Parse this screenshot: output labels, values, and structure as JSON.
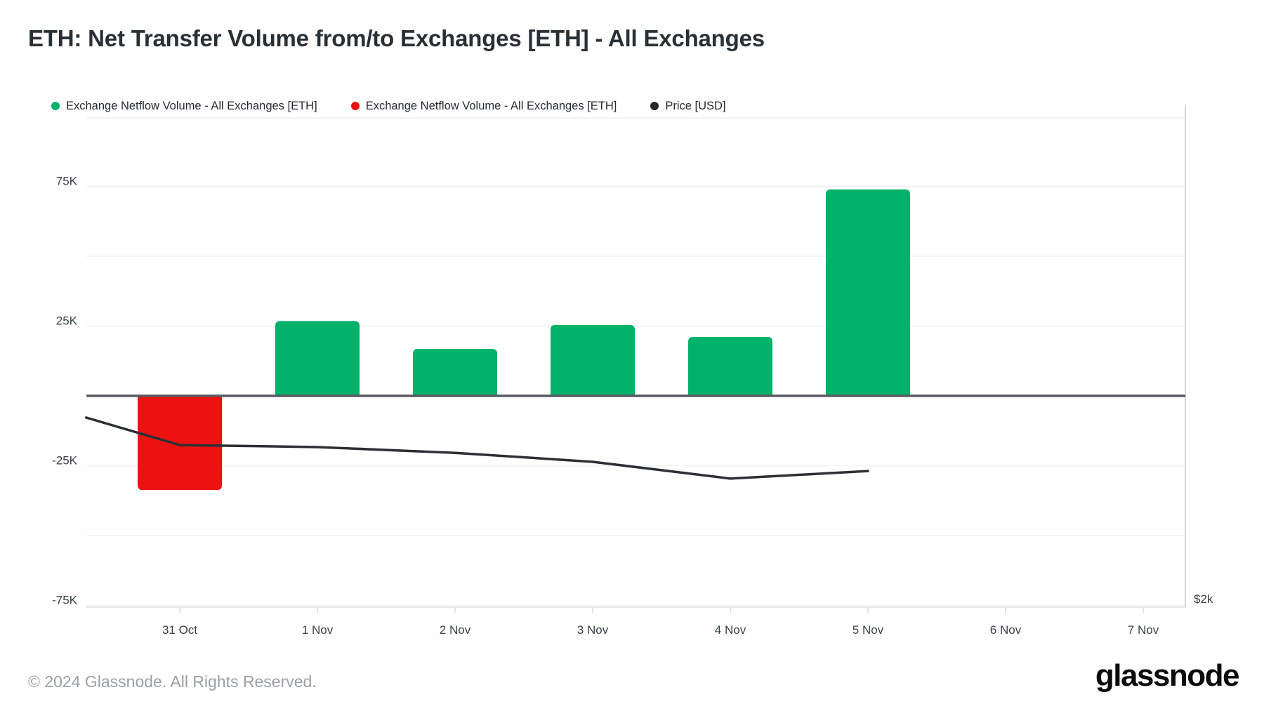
{
  "header": {
    "title": "ETH: Net Transfer Volume from/to Exchanges [ETH] - All Exchanges"
  },
  "legend": {
    "items": [
      {
        "label": "Exchange Netflow Volume - All Exchanges [ETH]",
        "color": "#00b26a"
      },
      {
        "label": "Exchange Netflow Volume - All Exchanges [ETH]",
        "color": "#ec1212"
      },
      {
        "label": "Price [USD]",
        "color": "#24272c"
      }
    ]
  },
  "footer": {
    "copyright": "© 2024 Glassnode. All Rights Reserved.",
    "brand": "glassnode"
  },
  "chart_data": {
    "type": "bar",
    "title": "ETH: Net Transfer Volume from/to Exchanges [ETH] - All Exchanges",
    "categories": [
      "31 Oct",
      "1 Nov",
      "2 Nov",
      "3 Nov",
      "4 Nov",
      "5 Nov",
      "6 Nov",
      "7 Nov"
    ],
    "series": [
      {
        "name": "Exchange Netflow Volume - All Exchanges [ETH]",
        "type": "bar",
        "values": [
          -33700,
          26800,
          16800,
          25400,
          21100,
          73900,
          null,
          null
        ],
        "color_positive": "#00b26a",
        "color_negative": "#ec1212"
      },
      {
        "name": "Price [USD]",
        "type": "line",
        "color": "#2c3034",
        "x_day_offsets": [
          -0.68,
          0,
          1,
          2,
          3,
          4,
          5
        ],
        "values": [
          2651,
          2556,
          2549,
          2529,
          2498,
          2440,
          2466
        ]
      }
    ],
    "left_axis": {
      "unit": "ETH",
      "tick_labels": [
        "75K",
        "25K",
        "-25K",
        "-75K"
      ],
      "tick_values": [
        75000,
        25000,
        -25000,
        -75000
      ],
      "minor_grid_values": [
        50000,
        -50000
      ],
      "ylim": [
        -75600,
        99500
      ]
    },
    "right_axis": {
      "unit": "USD",
      "tick_labels": [
        "$2k"
      ],
      "tick_values": [
        2000
      ],
      "ylim": [
        2000,
        3688
      ]
    },
    "grid": true,
    "legend_position": "top-left"
  }
}
